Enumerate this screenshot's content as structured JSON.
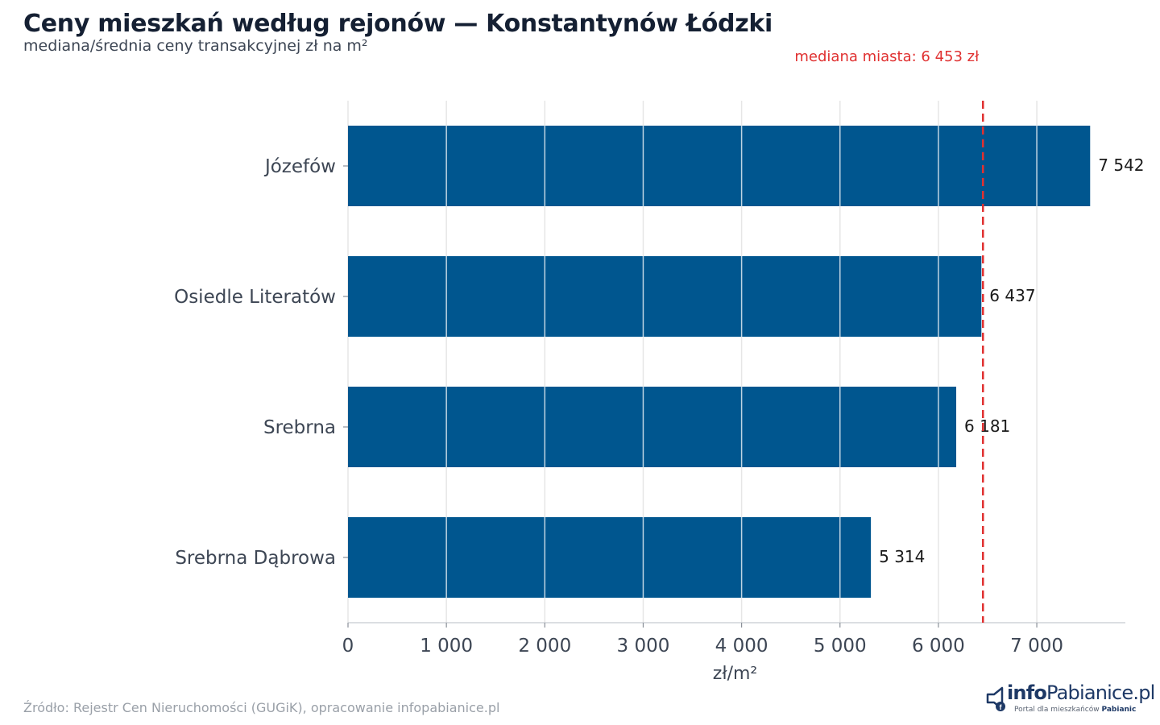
{
  "header": {
    "title": "Ceny mieszkań według rejonów — Konstantynów Łódzki",
    "subtitle": "mediana/średnia ceny transakcyjnej zł na m²"
  },
  "footer": {
    "source": "Źródło: Rejestr Cen Nieruchomości (GUGiK), opracowanie infopabianice.pl"
  },
  "logo": {
    "brand_prefix": "info",
    "brand_name": "Pabianice.pl",
    "tagline_prefix": "Portal dla mieszkańców ",
    "tagline_city": "Pabianic"
  },
  "colors": {
    "bar": "#00568f",
    "reference_line": "#e03131",
    "grid": "#e6e6e6",
    "axis_text": "#3d4654",
    "value_label": "#1a1a1a"
  },
  "chart_data": {
    "type": "bar",
    "orientation": "horizontal",
    "categories": [
      "Józefów",
      "Osiedle Literatów",
      "Srebrna",
      "Srebrna Dąbrowa"
    ],
    "values": [
      7542,
      6437,
      6181,
      5314
    ],
    "value_labels": [
      "7 542",
      "6 437",
      "6 181",
      "5 314"
    ],
    "xlabel": "zł/m²",
    "ylabel": "",
    "xlim": [
      0,
      7900
    ],
    "xticks": [
      0,
      1000,
      2000,
      3000,
      4000,
      5000,
      6000,
      7000
    ],
    "xtick_labels": [
      "0",
      "1 000",
      "2 000",
      "3 000",
      "4 000",
      "5 000",
      "6 000",
      "7 000"
    ],
    "grid": true,
    "reference_line": {
      "value": 6453,
      "label": "mediana miasta: 6 453 zł",
      "style": "dashed"
    }
  }
}
